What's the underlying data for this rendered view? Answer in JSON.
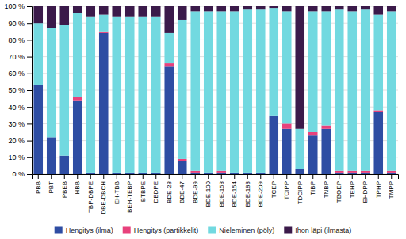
{
  "chart_data": {
    "type": "bar",
    "stacked": true,
    "categories": [
      "PBB",
      "PBT",
      "PBEB",
      "HBB",
      "TBP-DBPE",
      "DBE-DBCH",
      "EH-TBB",
      "BEH-TEBP",
      "BTBPE",
      "DBDPE",
      "BDE-28",
      "BDE-47",
      "BDE-99",
      "BDE-100",
      "BDE-153",
      "BDE-154",
      "BDE-183",
      "BDE-209",
      "TCEP",
      "TCIPP",
      "TDCIPP",
      "TIBP",
      "TNBP",
      "TBOEP",
      "TEHP",
      "EHDPP",
      "TPHP",
      "TMPP"
    ],
    "series": [
      {
        "name": "Hengitys (ilma)",
        "color": "#2E4DA3",
        "values": [
          53,
          22,
          11,
          44,
          1,
          84,
          1,
          1,
          1,
          1,
          64,
          8,
          1,
          1,
          1,
          1,
          1,
          1,
          35,
          27,
          3,
          23,
          27,
          1,
          1,
          1,
          37,
          1
        ]
      },
      {
        "name": "Hengitys (partikkelit)",
        "color": "#E8417C",
        "values": [
          0,
          0,
          0,
          2,
          0,
          1,
          0,
          0,
          0,
          0,
          2,
          1,
          1,
          0,
          1,
          0,
          0,
          0,
          0,
          3,
          0,
          2,
          2,
          1,
          1,
          1,
          1,
          1
        ]
      },
      {
        "name": "Nieleminen (pöly)",
        "color": "#72D9E0",
        "values": [
          37,
          65,
          78,
          50,
          93,
          10,
          93,
          93,
          93,
          93,
          18,
          83,
          95,
          96,
          95,
          96,
          97,
          97,
          64,
          67,
          24,
          72,
          68,
          96,
          95,
          96,
          57,
          95
        ]
      },
      {
        "name": "Ihon läpi (ilmasta)",
        "color": "#3B1A4A",
        "values": [
          10,
          13,
          11,
          4,
          6,
          5,
          6,
          6,
          6,
          6,
          16,
          8,
          3,
          3,
          3,
          3,
          2,
          2,
          1,
          3,
          73,
          3,
          3,
          2,
          3,
          2,
          5,
          3
        ]
      }
    ],
    "ylim": [
      0,
      100
    ],
    "yticks": [
      {
        "value": 0,
        "label": "0 %"
      },
      {
        "value": 10,
        "label": "10 %"
      },
      {
        "value": 20,
        "label": "20 %"
      },
      {
        "value": 30,
        "label": "30 %"
      },
      {
        "value": 40,
        "label": "40 %"
      },
      {
        "value": 50,
        "label": "50 %"
      },
      {
        "value": 60,
        "label": "60 %"
      },
      {
        "value": 70,
        "label": "70 %"
      },
      {
        "value": 80,
        "label": "80 %"
      },
      {
        "value": 90,
        "label": "90 %"
      },
      {
        "value": 100,
        "label": "100 %"
      }
    ],
    "grid": true,
    "legend": "bottom"
  }
}
